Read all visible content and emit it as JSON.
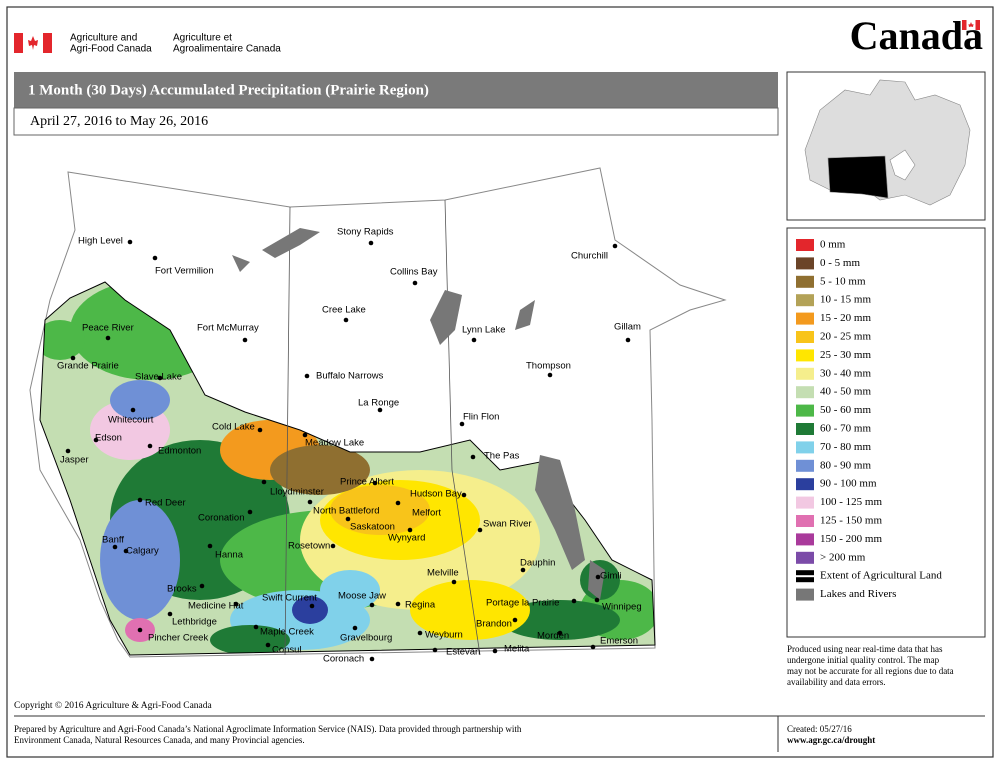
{
  "header": {
    "agency_en": [
      "Agriculture and",
      "Agri-Food Canada"
    ],
    "agency_fr": [
      "Agriculture et",
      "Agroalimentaire Canada"
    ],
    "wordmark": "Canada"
  },
  "title": "1 Month (30 Days) Accumulated Precipitation (Prairie Region)",
  "subtitle": "April 27, 2016 to May 26, 2016",
  "legend": {
    "items": [
      {
        "label": "0 mm",
        "color": "#e3262c"
      },
      {
        "label": "0 - 5 mm",
        "color": "#6b4428"
      },
      {
        "label": "5 - 10 mm",
        "color": "#8f6f30"
      },
      {
        "label": "10 - 15 mm",
        "color": "#b3a257"
      },
      {
        "label": "15 - 20 mm",
        "color": "#f39a1e"
      },
      {
        "label": "20 - 25 mm",
        "color": "#f8c41a"
      },
      {
        "label": "25 - 30 mm",
        "color": "#ffe600"
      },
      {
        "label": "30 - 40 mm",
        "color": "#f5ee8c"
      },
      {
        "label": "40 - 50 mm",
        "color": "#c4deb2"
      },
      {
        "label": "50 - 60 mm",
        "color": "#4db848"
      },
      {
        "label": "60 - 70 mm",
        "color": "#1f7a36"
      },
      {
        "label": "70 - 80 mm",
        "color": "#80d1ea"
      },
      {
        "label": "80 - 90 mm",
        "color": "#6f90d6"
      },
      {
        "label": "90 - 100 mm",
        "color": "#2b3f9e"
      },
      {
        "label": "100 - 125 mm",
        "color": "#f2c8e2"
      },
      {
        "label": "125 - 150 mm",
        "color": "#e070b1"
      },
      {
        "label": "150 - 200 mm",
        "color": "#a93a9b"
      },
      {
        "label": "> 200 mm",
        "color": "#7b4ba8"
      },
      {
        "label": "Extent of Agricultural Land",
        "color": "#000000"
      },
      {
        "label": "Lakes and Rivers",
        "color": "#777777"
      }
    ]
  },
  "note": [
    "Produced using near real-time data that has",
    "undergone initial quality control.  The map",
    "may not be accurate for all regions due to data",
    "availability and data errors."
  ],
  "copyright": "Copyright © 2016 Agriculture & Agri-Food Canada",
  "footer": {
    "prepared": [
      "Prepared by Agriculture and Agri-Food Canada’s National Agroclimate Information Service (NAIS).   Data provided through partnership with",
      "Environment Canada, Natural Resources Canada, and many Provincial agencies."
    ],
    "created": "Created: 05/27/16",
    "url": "www.agr.gc.ca/drought"
  },
  "cities": [
    "High Level",
    "Fort Vermilion",
    "Peace River",
    "Fort McMurray",
    "Grande Prairie",
    "Slave Lake",
    "Whitecourt",
    "Edson",
    "Jasper",
    "Edmonton",
    "Cold Lake",
    "Meadow Lake",
    "Lloydminster",
    "Red Deer",
    "Coronation",
    "North Battleford",
    "Prince Albert",
    "Melfort",
    "Hudson Bay",
    "Saskatoon",
    "Banff",
    "Calgary",
    "Hanna",
    "Rosetown",
    "Wynyard",
    "Swan River",
    "Dauphin",
    "Gimli",
    "Melville",
    "Brooks",
    "Medicine Hat",
    "Swift Current",
    "Moose Jaw",
    "Regina",
    "Portage la Prairie",
    "Winnipeg",
    "Lethbridge",
    "Pincher Creek",
    "Maple Creek",
    "Gravelbourg",
    "Weyburn",
    "Brandon",
    "Morden",
    "Emerson",
    "Consul",
    "Estevan",
    "Melita",
    "Coronach",
    "Stony Rapids",
    "Collins Bay",
    "Churchill",
    "Cree Lake",
    "Lynn Lake",
    "Gillam",
    "Thompson",
    "Buffalo Narrows",
    "La Ronge",
    "Flin Flon",
    "The Pas"
  ]
}
